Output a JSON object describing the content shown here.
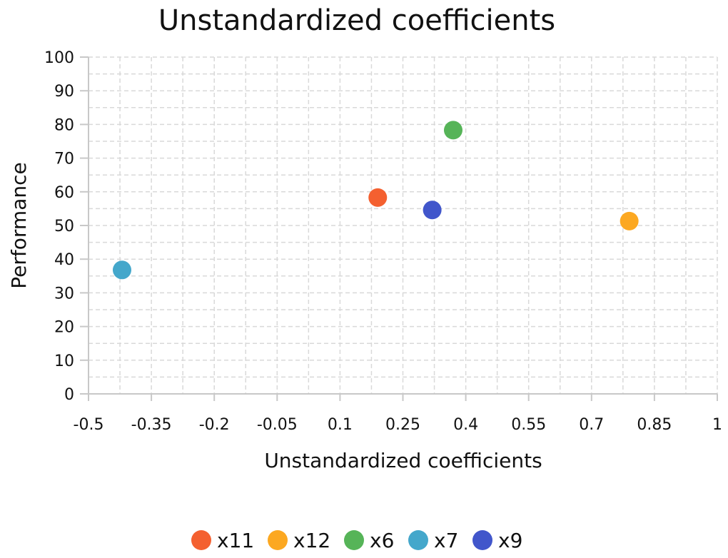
{
  "chart_data": {
    "type": "scatter",
    "title": "Unstandardized coefficients",
    "xlabel": "Unstandardized coefficients",
    "ylabel": "Performance",
    "xlim": [
      -0.5,
      1
    ],
    "ylim": [
      0,
      100
    ],
    "x_ticks": [
      "-0.5",
      "-0.35",
      "-0.2",
      "-0.05",
      "0.1",
      "0.25",
      "0.4",
      "0.55",
      "0.7",
      "0.85",
      "1"
    ],
    "y_ticks": [
      "0",
      "10",
      "20",
      "30",
      "40",
      "50",
      "60",
      "70",
      "80",
      "90",
      "100"
    ],
    "grid": true,
    "legend_position": "bottom",
    "series": [
      {
        "name": "x11",
        "color": "#f46030",
        "points": [
          {
            "x": 0.19,
            "y": 58.3
          }
        ]
      },
      {
        "name": "x12",
        "color": "#fca821",
        "points": [
          {
            "x": 0.79,
            "y": 51.3
          }
        ]
      },
      {
        "name": "x6",
        "color": "#56b458",
        "points": [
          {
            "x": 0.37,
            "y": 78.3
          }
        ]
      },
      {
        "name": "x7",
        "color": "#44a7cb",
        "points": [
          {
            "x": -0.42,
            "y": 36.8
          }
        ]
      },
      {
        "name": "x9",
        "color": "#4156cb",
        "points": [
          {
            "x": 0.32,
            "y": 54.6
          }
        ]
      }
    ]
  }
}
